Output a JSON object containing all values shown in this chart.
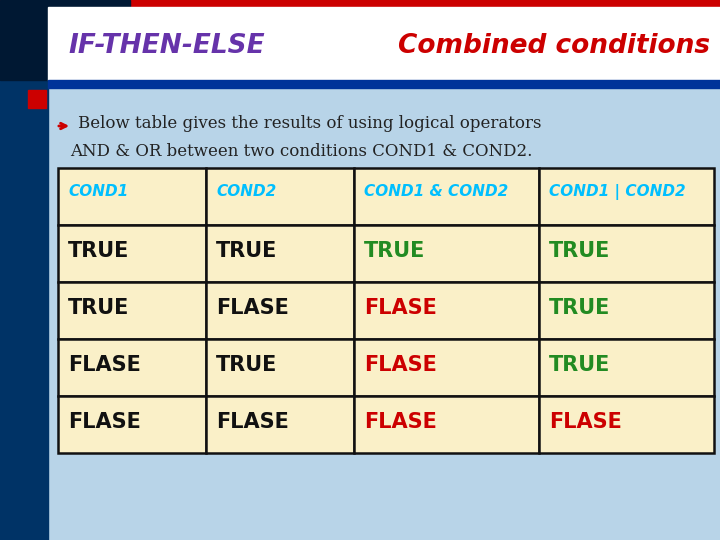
{
  "title_left": "IF-THEN-ELSE",
  "title_right": "Combined conditions",
  "title_left_color": "#6633AA",
  "title_right_color": "#CC0000",
  "subtitle1": "Below table gives the results of using logical operators",
  "subtitle2": "AND & OR between two conditions COND1 & COND2.",
  "subtitle_color": "#222222",
  "bg_color": "#B8D4E8",
  "cell_bg": "#FAF0C8",
  "header_bg": "#FAF0C8",
  "header_text_color": "#00BFFF",
  "table_border_color": "#111111",
  "col_headers": [
    "COND1",
    "COND2",
    "COND1 & COND2",
    "COND1 | COND2"
  ],
  "rows": [
    [
      "TRUE",
      "TRUE",
      "TRUE",
      "TRUE"
    ],
    [
      "TRUE",
      "FLASE",
      "FLASE",
      "TRUE"
    ],
    [
      "FLASE",
      "TRUE",
      "FLASE",
      "TRUE"
    ],
    [
      "FLASE",
      "FLASE",
      "FLASE",
      "FLASE"
    ]
  ],
  "col1_color": "#111111",
  "col2_color": "#111111",
  "col3_true_color": "#228B22",
  "col3_false_color": "#CC0000",
  "col4_true_color": "#228B22",
  "col4_false_color": "#CC0000",
  "top_bar_color": "#CC0000",
  "left_bar_color": "#003366",
  "left_bar2_color": "#004488",
  "header_box_bg": "#FFFFFF",
  "bullet_color": "#CC0000",
  "dark_corner_color": "#001833"
}
